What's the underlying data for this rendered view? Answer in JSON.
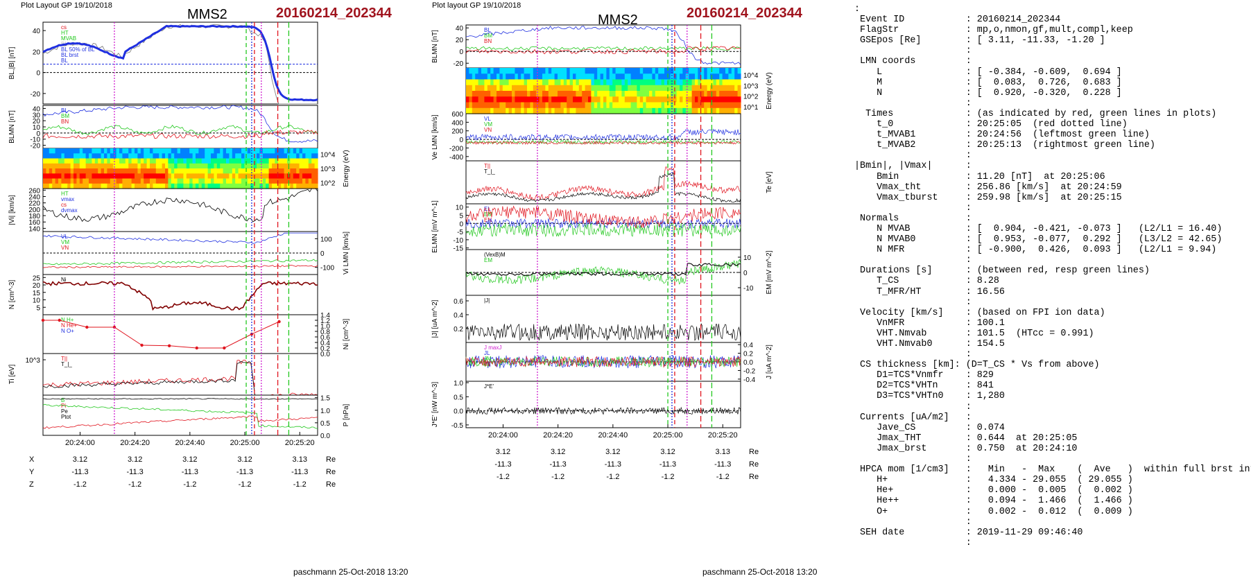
{
  "page": {
    "left_header": "Plot Layout GP 19/10/2018",
    "mid_header": "Plot layout GP 19/10/2018",
    "spacecraft": "MMS2",
    "event": "20160214_202344",
    "footer": "paschmann 25-Oct-2018 13:20"
  },
  "colors": {
    "event": "#a0141e",
    "blue": "#1f2fe0",
    "red": "#e0141e",
    "green": "#22c81e",
    "magenta": "#d020d0",
    "black": "#000000"
  },
  "chart_data": [
    {
      "type": "line",
      "title": "MMS2 20160214_202344 (left stack)",
      "time_ticks": [
        "20:24:00",
        "20:24:20",
        "20:24:40",
        "20:25:00",
        "20:25:20"
      ],
      "orbit_table": {
        "rows": [
          {
            "label": "X",
            "values": [
              "3.12",
              "3.12",
              "3.12",
              "3.12",
              "3.13"
            ],
            "unit": "Re"
          },
          {
            "label": "Y",
            "values": [
              "-11.3",
              "-11.3",
              "-11.3",
              "-11.3",
              "-11.3"
            ],
            "unit": "Re"
          },
          {
            "label": "Z",
            "values": [
              "-1.2",
              "-1.2",
              "-1.2",
              "-1.2",
              "-1.2"
            ],
            "unit": "Re"
          }
        ]
      },
      "panels": [
        {
          "ylabel": "BL,|B| [nT]",
          "yticks": [
            "40",
            "20",
            "0",
            "-20"
          ],
          "ylim": [
            -30,
            48
          ],
          "legend": [
            "cs",
            "HT",
            "MVAB",
            "BLminmax",
            "BL 50% of BL",
            "BL brst",
            "BL"
          ]
        },
        {
          "ylabel": "BLMN [nT]",
          "yticks": [
            "40",
            "30",
            "20",
            "10",
            "0",
            "-10",
            "-20"
          ],
          "ylim": [
            -25,
            45
          ],
          "legend": [
            "BL",
            "BM",
            "BN"
          ]
        },
        {
          "ylabel": "Energy (eV)",
          "yticks": [
            "10^4",
            "10^3",
            "10^2"
          ],
          "type": "heatmap"
        },
        {
          "ylabel": "|Vi| [km/s]",
          "yticks": [
            "260",
            "240",
            "220",
            "200",
            "180",
            "160",
            "140"
          ],
          "ylim": [
            130,
            265
          ],
          "legend": [
            "HT",
            "vmax",
            "cs",
            "dvmax"
          ]
        },
        {
          "ylabel": "Vi LMN [km/s]",
          "yticks": [
            "100",
            "0",
            "-100"
          ],
          "ylim": [
            -150,
            150
          ],
          "legend": [
            "VL",
            "VM",
            "VN"
          ]
        },
        {
          "ylabel": "N [cm^-3]",
          "yticks": [
            "25",
            "20",
            "15",
            "10",
            "5"
          ],
          "ylim": [
            0,
            27
          ],
          "legend": [
            "Ni"
          ]
        },
        {
          "ylabel": "Ni [cm^-3]",
          "yticks": [
            "1.4",
            "1.2",
            "1.0",
            "0.8",
            "0.6",
            "0.4",
            "0.2",
            "0.0"
          ],
          "ylim": [
            0,
            1.4
          ],
          "legend": [
            "N H+",
            "N He+",
            "N O+"
          ]
        },
        {
          "ylabel": "Ti [eV]",
          "yticks": [
            "10^3"
          ],
          "legend": [
            "T||",
            "T_|_"
          ]
        },
        {
          "ylabel": "P [nPa]",
          "yticks": [
            "1.5",
            "1.0",
            "0.5",
            "0.0"
          ],
          "ylim": [
            0,
            1.6
          ],
          "legend": [
            "B",
            "Pi",
            "Pe",
            "Ptot"
          ]
        }
      ]
    },
    {
      "type": "line",
      "title": "MMS2 20160214_202344 (middle stack)",
      "time_ticks": [
        "20:24:00",
        "20:24:20",
        "20:24:40",
        "20:25:00",
        "20:25:20"
      ],
      "orbit_table": {
        "rows": [
          {
            "label": "X",
            "values": [
              "3.12",
              "3.12",
              "3.12",
              "3.12",
              "3.13"
            ],
            "unit": "Re"
          },
          {
            "label": "Y",
            "values": [
              "-11.3",
              "-11.3",
              "-11.3",
              "-11.3",
              "-11.3"
            ],
            "unit": "Re"
          },
          {
            "label": "Z",
            "values": [
              "-1.2",
              "-1.2",
              "-1.2",
              "-1.2",
              "-1.2"
            ],
            "unit": "Re"
          }
        ]
      },
      "panels": [
        {
          "ylabel": "BLMN [nT]",
          "yticks": [
            "40",
            "20",
            "0",
            "-20"
          ],
          "ylim": [
            -28,
            45
          ],
          "legend": [
            "BL",
            "BM",
            "BN"
          ]
        },
        {
          "ylabel": "Energy (eV)",
          "yticks": [
            "10^4",
            "10^3",
            "10^2",
            "10^1"
          ],
          "type": "heatmap"
        },
        {
          "ylabel": "Ve LMN [km/s]",
          "yticks": [
            "600",
            "400",
            "200",
            "0",
            "-200",
            "-400"
          ],
          "ylim": [
            -500,
            600
          ],
          "legend": [
            "VL",
            "VM",
            "VN"
          ]
        },
        {
          "ylabel": "Te [eV]",
          "yticks": [],
          "legend": [
            "T||",
            "T_|_"
          ]
        },
        {
          "ylabel": "ELMN [mV m^-1]",
          "yticks": [
            "10",
            "5",
            "0",
            "-5",
            "-10",
            "-15"
          ],
          "ylim": [
            -16,
            12
          ],
          "legend": [
            "EL",
            "EM",
            "EN"
          ]
        },
        {
          "ylabel": "EM [mV m^-2]",
          "yticks": [
            "10",
            "0",
            "-10"
          ],
          "ylim": [
            -15,
            15
          ],
          "legend": [
            "(VexB)M",
            "EM"
          ]
        },
        {
          "ylabel": "|J| [uA m^-2]",
          "yticks": [
            "0.6",
            "0.4",
            "0.2"
          ],
          "ylim": [
            0,
            0.68
          ],
          "legend": [
            "|J|"
          ]
        },
        {
          "ylabel": "J [uA m^-2]",
          "yticks": [
            "0.4",
            "0.2",
            "0.0",
            "-0.2",
            "-0.4"
          ],
          "ylim": [
            -0.45,
            0.45
          ],
          "legend": [
            "J maxJ",
            "JL",
            "JM",
            "JN"
          ]
        },
        {
          "ylabel": "J*E' [nW m^-3]",
          "yticks": [
            "1.0",
            "0.5",
            "0.0",
            "-0.5"
          ],
          "ylim": [
            -0.6,
            1.05
          ],
          "legend": [
            "J*E'"
          ]
        }
      ]
    }
  ],
  "info_lines": [
    ":",
    " Event ID           : 20160214_202344",
    " FlagStr            : mp,o,nmon,gf,mult,compl,keep",
    " GSEpos [Re]        : [ 3.11, -11.33, -1.20 ]",
    "                    :",
    " LMN coords         :",
    "    L               : [ -0.384, -0.609,  0.694 ]",
    "    M               : [  0.083,  0.726,  0.683 ]",
    "    N               : [  0.920, -0.320,  0.228 ]",
    "                    :",
    "  Times             : (as indicated by red, green lines in plots)",
    "    t_0             : 20:25:05  (red dotted line)",
    "    t_MVAB1         : 20:24:56  (leftmost green line)",
    "    t_MVAB2         : 20:25:13  (rightmost green line)",
    "                    :",
    "|Bmin|, |Vmax|      :",
    "    Bmin            : 11.20 [nT]  at 20:25:06",
    "    Vmax_tht        : 256.86 [km/s]  at 20:24:59",
    "    Vmax_tburst     : 259.98 [km/s]  at 20:25:15",
    "                    :",
    " Normals            :",
    "    N MVAB          : [  0.904, -0.421, -0.073 ]   (L2/L1 = 16.40)",
    "    N MVAB0         : [  0.953, -0.077,  0.292 ]   (L3/L2 = 42.65)",
    "    N MFR           : [ -0.900,  0.426,  0.093 ]   (L2/L1 = 9.94)",
    "                    :",
    " Durations [s]      : (between red, resp green lines)",
    "    T_CS            : 8.28",
    "    T_MFR/HT        : 16.56",
    "                    :",
    " Velocity [km/s]    : (based on FPI ion data)",
    "    VnMFR           : 100.1",
    "    VHT.Nmvab       : 101.5  (HTcc = 0.991)",
    "    VHT.Nmvab0      : 154.5",
    "                    :",
    " CS thickness [km]: (D=T_CS * Vs from above)",
    "    D1=TCS*Vnmfr    : 829",
    "    D2=TCS*VHTn     : 841",
    "    D3=TCS*VHTn0    : 1,280",
    "                    :",
    " Currents [uA/m2]   :",
    "    Jave_CS         : 0.074",
    "    Jmax_THT        : 0.644  at 20:25:05",
    "    Jmax_brst       : 0.750  at 20:24:10",
    "                    :",
    " HPCA mom [1/cm3]   :   Min   -  Max    (  Ave   )  within full brst int",
    "    H+              :   4.334 - 29.055  ( 29.055 )",
    "    He+             :   0.000 -  0.005  (  0.002 )",
    "    He++            :   0.094 -  1.466  (  1.466 )",
    "    O+              :   0.002 -  0.012  (  0.009 )",
    "                    :",
    " SEH date           : 2019-11-29 09:46:40",
    "                    :"
  ]
}
